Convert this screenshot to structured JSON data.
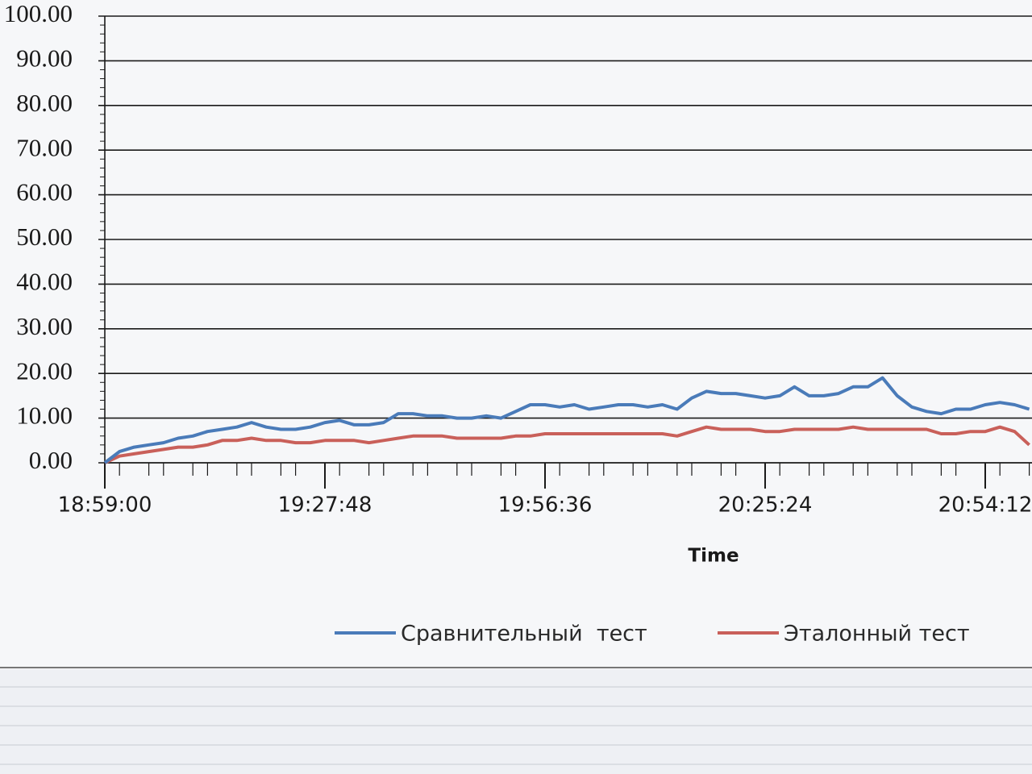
{
  "chart_data": {
    "type": "line",
    "x_label": "Time",
    "categories": [
      "18:59:00",
      null,
      null,
      null,
      null,
      null,
      null,
      null,
      null,
      null,
      null,
      null,
      null,
      null,
      null,
      "19:27:48",
      null,
      null,
      null,
      null,
      null,
      null,
      null,
      null,
      null,
      null,
      null,
      null,
      null,
      null,
      "19:56:36",
      null,
      null,
      null,
      null,
      null,
      null,
      null,
      null,
      null,
      null,
      null,
      null,
      null,
      null,
      "20:25:24",
      null,
      null,
      null,
      null,
      null,
      null,
      null,
      null,
      null,
      null,
      null,
      null,
      null,
      null,
      "20:54:12",
      null,
      null,
      null
    ],
    "series": [
      {
        "name": "Сравнительный  тест",
        "color": "#4a7bb9",
        "values": [
          0,
          2.5,
          3.5,
          4,
          4.5,
          5.5,
          6,
          7,
          7.5,
          8,
          9,
          8,
          7.5,
          7.5,
          8,
          9,
          9.5,
          8.5,
          8.5,
          9,
          11,
          11,
          10.5,
          10.5,
          10,
          10,
          10.5,
          10,
          11.5,
          13,
          13,
          12.5,
          13,
          12,
          12.5,
          13,
          13,
          12.5,
          13,
          12,
          14.5,
          16,
          15.5,
          15.5,
          15,
          14.5,
          15,
          17,
          15,
          15,
          15.5,
          17,
          17,
          19,
          15,
          12.5,
          11.5,
          11,
          12,
          12,
          13,
          13.5,
          13,
          12
        ]
      },
      {
        "name": "Эталонный тест",
        "color": "#c9605a",
        "values": [
          0,
          1.5,
          2,
          2.5,
          3,
          3.5,
          3.5,
          4,
          5,
          5,
          5.5,
          5,
          5,
          4.5,
          4.5,
          5,
          5,
          5,
          4.5,
          5,
          5.5,
          6,
          6,
          6,
          5.5,
          5.5,
          5.5,
          5.5,
          6,
          6,
          6.5,
          6.5,
          6.5,
          6.5,
          6.5,
          6.5,
          6.5,
          6.5,
          6.5,
          6,
          7,
          8,
          7.5,
          7.5,
          7.5,
          7,
          7,
          7.5,
          7.5,
          7.5,
          7.5,
          8,
          7.5,
          7.5,
          7.5,
          7.5,
          7.5,
          6.5,
          6.5,
          7,
          7,
          8,
          7,
          4
        ]
      }
    ],
    "ylim": [
      0,
      100
    ],
    "yticks": [
      {
        "value": 0,
        "label": "0.00"
      },
      {
        "value": 10,
        "label": "10.00"
      },
      {
        "value": 20,
        "label": "20.00"
      },
      {
        "value": 30,
        "label": "30.00"
      },
      {
        "value": 40,
        "label": "40.00"
      },
      {
        "value": 50,
        "label": "50.00"
      },
      {
        "value": 60,
        "label": "60.00"
      },
      {
        "value": 70,
        "label": "70.00"
      },
      {
        "value": 80,
        "label": "80.00"
      },
      {
        "value": 90,
        "label": "90.00"
      },
      {
        "value": 100,
        "label": "100.00"
      }
    ],
    "grid": true,
    "legend": "bottom"
  }
}
